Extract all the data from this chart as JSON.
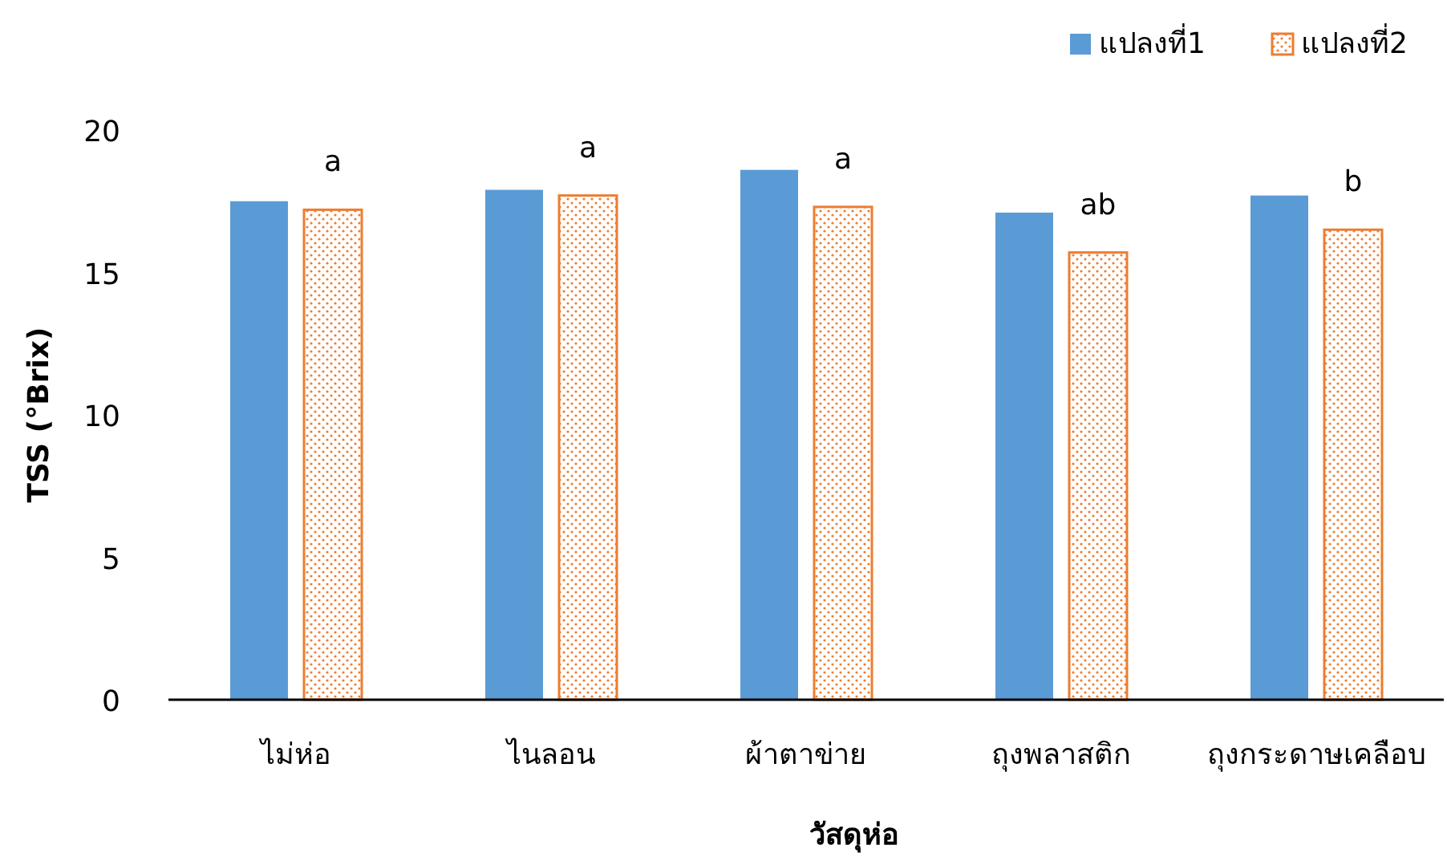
{
  "chart_data": {
    "type": "bar",
    "xlabel": "วัสดุห่อ",
    "ylabel": "TSS (°Brix)",
    "categories": [
      "ไม่ห่อ",
      "ไนลอน",
      "ผ้าตาข่าย",
      "ถุงพลาสติก",
      "ถุงกระดาษเคลือบ"
    ],
    "series": [
      {
        "name": "แปลงที่1",
        "color": "#5b9bd5",
        "values": [
          17.5,
          17.9,
          18.6,
          17.1,
          17.7
        ]
      },
      {
        "name": "แปลงที่2",
        "color": "#ed7d31",
        "values": [
          17.2,
          17.7,
          17.3,
          15.7,
          16.5
        ]
      }
    ],
    "ylim": [
      0,
      20
    ],
    "yticks": [
      0,
      5,
      10,
      15,
      20
    ],
    "grid": false,
    "legend": "top right",
    "annotations": [
      "a",
      "a",
      "a",
      "ab",
      "b"
    ]
  }
}
